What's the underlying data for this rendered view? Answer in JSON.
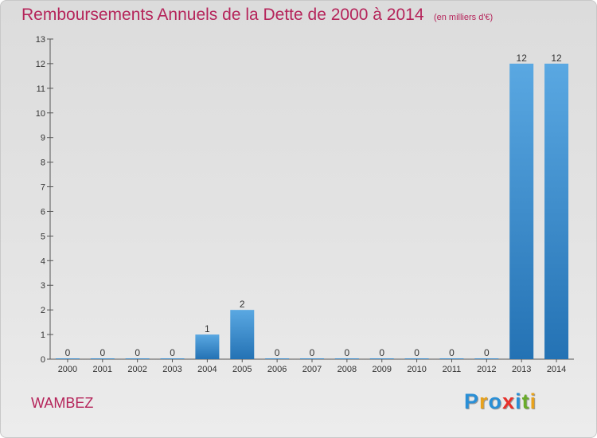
{
  "title": "Remboursements Annuels de la Dette de 2000 à 2014",
  "subtitle": "(en milliers d'€)",
  "commune": "WAMBEZ",
  "logo": {
    "letters": [
      "P",
      "r",
      "o",
      "x",
      "i",
      "t",
      "i"
    ],
    "colors": [
      "#2a8fd6",
      "#e8a21c",
      "#2a8fd6",
      "#e8302a",
      "#2a8fd6",
      "#6aac2a",
      "#e8a21c"
    ]
  },
  "chart_data": {
    "type": "bar",
    "categories": [
      "2000",
      "2001",
      "2002",
      "2003",
      "2004",
      "2005",
      "2006",
      "2007",
      "2008",
      "2009",
      "2010",
      "2011",
      "2012",
      "2013",
      "2014"
    ],
    "values": [
      0,
      0,
      0,
      0,
      1,
      2,
      0,
      0,
      0,
      0,
      0,
      0,
      0,
      12,
      12
    ],
    "ylim": [
      0,
      13
    ],
    "yticks": [
      "0",
      "1",
      "2",
      "3",
      "4",
      "5",
      "6",
      "7",
      "8",
      "9",
      "10",
      "11",
      "12",
      "13"
    ],
    "xlabel": "",
    "ylabel": "",
    "grid": false,
    "colors": {
      "bar_light": "#5aa8e2",
      "bar_dark": "#2472b4"
    }
  }
}
